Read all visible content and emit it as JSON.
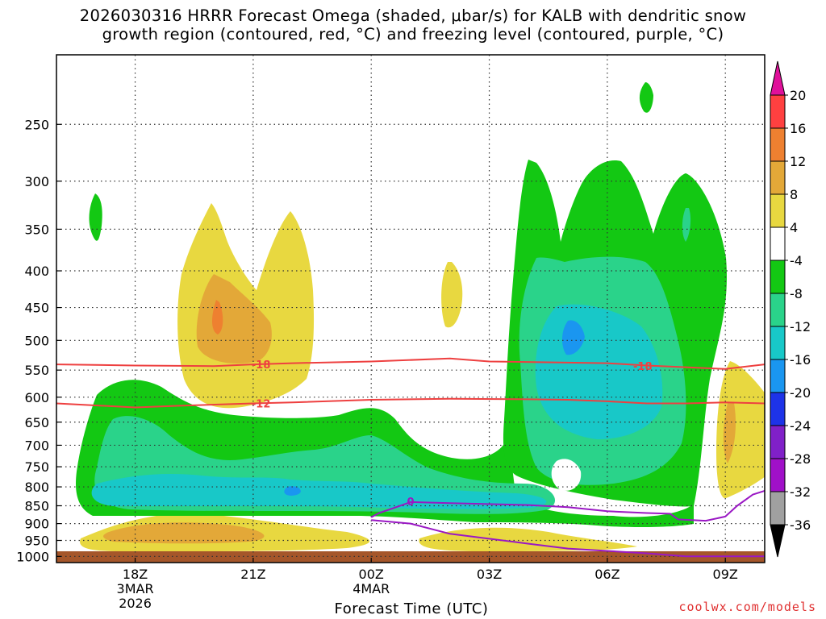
{
  "chart_data": {
    "type": "heatmap",
    "title_line1": "2026030316 HRRR Forecast Omega (shaded, μbar/s) for KALB with dendritic snow",
    "title_line2": "growth region (contoured, red, °C) and freezing level (contoured, purple, °C)",
    "xlabel": "Forecast Time (UTC)",
    "x_range_hours": [
      0,
      18
    ],
    "y_range_hPa": [
      1020,
      200
    ],
    "y_scale": "log-pressure",
    "grid": true,
    "y_ticks": [
      250,
      300,
      350,
      400,
      450,
      500,
      550,
      600,
      650,
      700,
      750,
      800,
      850,
      900,
      950,
      1000
    ],
    "x_ticks": [
      {
        "hour": 2,
        "lines": [
          "18Z",
          "3MAR",
          "2026"
        ]
      },
      {
        "hour": 5,
        "lines": [
          "21Z"
        ]
      },
      {
        "hour": 8,
        "lines": [
          "00Z",
          "4MAR"
        ]
      },
      {
        "hour": 11,
        "lines": [
          "03Z"
        ]
      },
      {
        "hour": 14,
        "lines": [
          "06Z"
        ]
      },
      {
        "hour": 17,
        "lines": [
          "09Z"
        ]
      }
    ],
    "colorbar": {
      "labels": [
        "20",
        "16",
        "12",
        "8",
        "4",
        "-4",
        "-8",
        "-12",
        "-16",
        "-20",
        "-24",
        "-28",
        "-32",
        "-36"
      ],
      "colors": [
        "#ff4040",
        "#ee8030",
        "#e3a838",
        "#e8d840",
        "#ffffff",
        "#13c813",
        "#2ad38a",
        "#18c8c8",
        "#1a96f0",
        "#1d33e8",
        "#8020c8",
        "#a010c8",
        "#a0a0a0"
      ],
      "top_arrow_color": "#e0109a",
      "bottom_arrow_color": "#000000"
    },
    "contour_labels": {
      "dgz_upper": "-18",
      "dgz_lower": "-12",
      "freezing": "0"
    },
    "dgz_upper_isotherm": [
      [
        0,
        540
      ],
      [
        2,
        542
      ],
      [
        4,
        543
      ],
      [
        5,
        540
      ],
      [
        6,
        538
      ],
      [
        8,
        535
      ],
      [
        10,
        530
      ],
      [
        11,
        535
      ],
      [
        13,
        537
      ],
      [
        14,
        538
      ],
      [
        15,
        542
      ],
      [
        17,
        548
      ],
      [
        18,
        540
      ]
    ],
    "dgz_lower_isotherm": [
      [
        0,
        612
      ],
      [
        2,
        620
      ],
      [
        3,
        617
      ],
      [
        5,
        612
      ],
      [
        6,
        610
      ],
      [
        8,
        605
      ],
      [
        10,
        603
      ],
      [
        12,
        604
      ],
      [
        13,
        605
      ],
      [
        14,
        608
      ],
      [
        15,
        612
      ],
      [
        16,
        612
      ],
      [
        17,
        610
      ],
      [
        18,
        612
      ]
    ],
    "freezing_level": [
      [
        8,
        882
      ],
      [
        8.2,
        870
      ],
      [
        8.6,
        855
      ],
      [
        9,
        840
      ],
      [
        10,
        843
      ],
      [
        12,
        848
      ],
      [
        13,
        854
      ],
      [
        14,
        865
      ],
      [
        15,
        870
      ],
      [
        15.6,
        872
      ],
      [
        15.8,
        888
      ],
      [
        16.5,
        892
      ],
      [
        17,
        880
      ],
      [
        17.3,
        850
      ],
      [
        17.7,
        820
      ],
      [
        18,
        810
      ]
    ],
    "freezing_level_low": [
      [
        8,
        890
      ],
      [
        9,
        900
      ],
      [
        10,
        930
      ],
      [
        12,
        960
      ],
      [
        13,
        975
      ],
      [
        15,
        990
      ],
      [
        16,
        1000
      ],
      [
        18,
        1000
      ]
    ],
    "colors": {
      "ground": "#a5562a",
      "dgz": "#ee4040",
      "freezing": "#9a18c4"
    }
  },
  "credit": "coolwx.com/models"
}
